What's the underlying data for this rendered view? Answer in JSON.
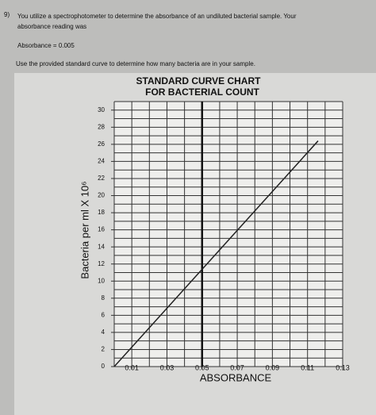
{
  "question": {
    "number": "9)",
    "text_lines": [
      "You utilize a spectrophotometer to determine the absorbance of an undiluted bacterial sample. Your",
      "absorbance reading was"
    ],
    "absorbance": "Absorbance = 0.005",
    "instruction": "Use the provided standard curve to determine how many bacteria are in your sample."
  },
  "chart_data": {
    "type": "line",
    "title": "STANDARD CURVE CHART",
    "subtitle": "FOR BACTERIAL COUNT",
    "x_label": "ABSORBANCE",
    "y_label": "Bacteria per ml X 10⁶",
    "x": [
      0,
      0.116
    ],
    "series": [
      {
        "color": "#222222",
        "values": [
          0,
          26.4
        ]
      }
    ],
    "reference_x": 0.05,
    "xlim": [
      0,
      0.13
    ],
    "ylim": [
      0,
      31
    ],
    "xticks": [
      0.01,
      0.03,
      0.05,
      0.07,
      0.09,
      0.11,
      0.13
    ],
    "yticks": [
      0,
      2,
      4,
      6,
      8,
      10,
      12,
      14,
      16,
      18,
      20,
      22,
      24,
      26,
      28,
      30
    ],
    "xgrid": [
      0,
      0.01,
      0.02,
      0.03,
      0.04,
      0.05,
      0.06,
      0.07,
      0.08,
      0.09,
      0.1,
      0.11,
      0.12,
      0.13
    ],
    "ygrid": [
      0,
      1,
      2,
      3,
      4,
      5,
      6,
      7,
      8,
      9,
      10,
      11,
      12,
      13,
      14,
      15,
      16,
      17,
      18,
      19,
      20,
      21,
      22,
      23,
      24,
      25,
      26,
      27,
      28,
      29,
      30,
      31
    ],
    "grid": true
  }
}
